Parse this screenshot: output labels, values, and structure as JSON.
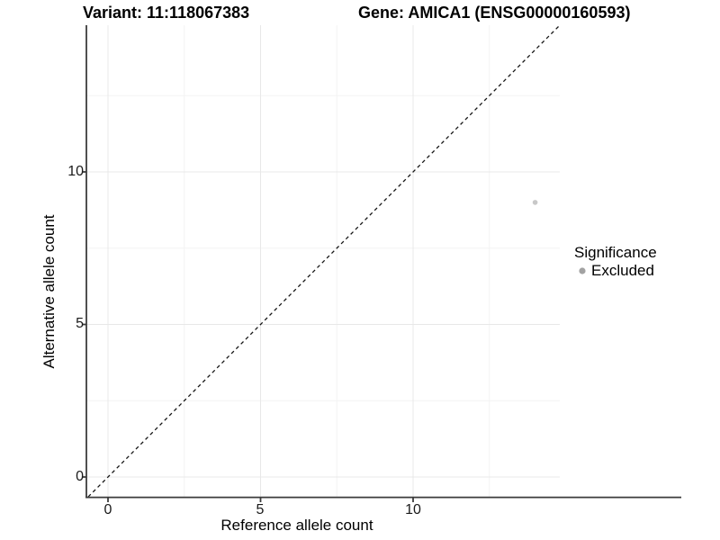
{
  "chart_data": {
    "type": "scatter",
    "title_left": "Variant: 11:118067383",
    "title_right": "Gene: AMICA1 (ENSG00000160593)",
    "xlabel": "Reference allele count",
    "ylabel": "Alternative allele count",
    "xlim": [
      -0.7,
      14.8
    ],
    "ylim": [
      -0.7,
      14.8
    ],
    "xticks": [
      0,
      5,
      10
    ],
    "yticks": [
      0,
      5,
      10
    ],
    "xtick_labels": [
      "0",
      "5",
      "10"
    ],
    "ytick_labels": [
      "0",
      "5",
      "10"
    ],
    "x_minor": [
      2.5,
      7.5,
      12.5
    ],
    "y_minor": [
      2.5,
      7.5,
      12.5
    ],
    "grid": "major+minor",
    "identity_line": {
      "style": "dashed",
      "x1": -0.65,
      "y1": -0.65,
      "x2": 14.8,
      "y2": 14.8
    },
    "series": [
      {
        "name": "Excluded",
        "color": "#c8c8c8",
        "points": [
          {
            "x": 14,
            "y": 9
          }
        ]
      }
    ],
    "legend": {
      "title": "Significance",
      "position": "right",
      "items": [
        {
          "label": "Excluded",
          "color": "#a2a2a2"
        }
      ]
    }
  },
  "colors": {
    "background": "#ffffff",
    "axis_line": "#3c3c3c",
    "tick_label": "#1a1a1a",
    "grid_major": "#e8e8e8",
    "grid_minor": "#f3f3f3",
    "identity_line": "#161616"
  }
}
